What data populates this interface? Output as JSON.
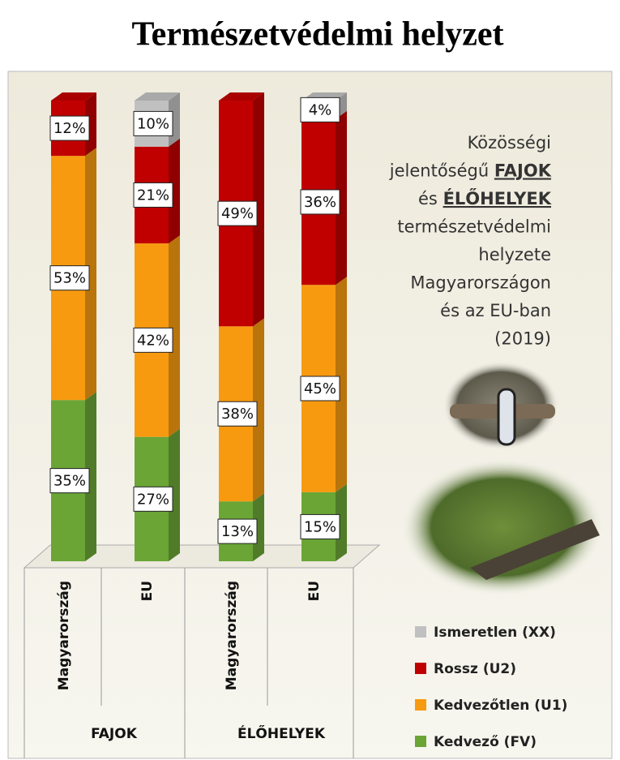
{
  "chart_data": {
    "type": "stacked_bar_3d",
    "title": "Természetvédelmi helyzet",
    "description": [
      "Közösségi",
      "jelentőségű",
      "FAJOK",
      "és",
      "ÉLŐHELYEK",
      "természetvédelmi",
      "helyzete",
      "Magyarországon",
      "és az EU-ban",
      "(2019)"
    ],
    "categories": [
      "Magyarország",
      "EU",
      "Magyarország",
      "EU"
    ],
    "groups": [
      {
        "name": "FAJOK",
        "size": 2
      },
      {
        "name": "ÉLŐHELYEK",
        "size": 2
      }
    ],
    "series": [
      {
        "name": "Kedvező (FV)",
        "color": "#6aa536",
        "values": [
          35,
          27,
          13,
          15
        ],
        "value_labels": [
          "35%",
          "27%",
          "13%",
          "15%"
        ]
      },
      {
        "name": "Kedvezőtlen (U1)",
        "color": "#f79a10",
        "values": [
          53,
          42,
          38,
          45
        ],
        "value_labels": [
          "53%",
          "42%",
          "38%",
          "45%"
        ]
      },
      {
        "name": "Rossz (U2)",
        "color": "#c00000",
        "values": [
          12,
          21,
          49,
          36
        ],
        "value_labels": [
          "12%",
          "21%",
          "49%",
          "36%"
        ]
      },
      {
        "name": "Ismeretlen (XX)",
        "color": "#c0c0c0",
        "values": [
          null,
          10,
          null,
          4
        ],
        "value_labels": [
          null,
          "10%",
          null,
          "4%"
        ]
      }
    ]
  }
}
